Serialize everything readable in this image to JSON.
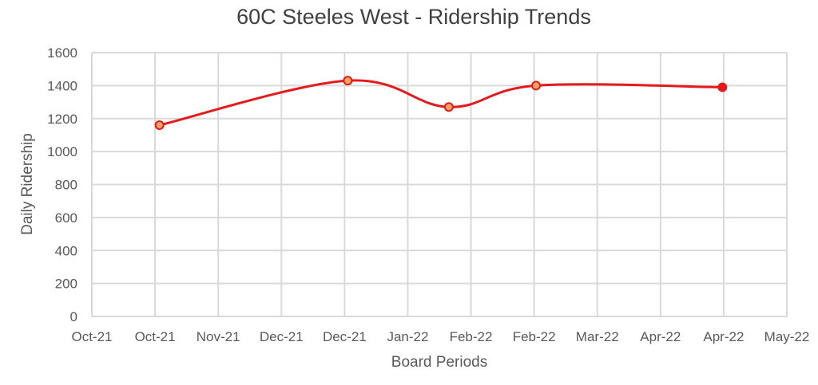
{
  "chart_data": {
    "type": "line",
    "title": "60C Steeles West - Ridership Trends",
    "xlabel": "Board Periods",
    "ylabel": "Daily Ridership",
    "x_tick_labels": [
      "Oct-21",
      "Oct-21",
      "Nov-21",
      "Dec-21",
      "Dec-21",
      "Jan-22",
      "Feb-22",
      "Feb-22",
      "Mar-22",
      "Apr-22",
      "Apr-22",
      "May-22"
    ],
    "y_ticks": [
      0,
      200,
      400,
      600,
      800,
      1000,
      1200,
      1400,
      1600
    ],
    "ylim": [
      0,
      1600
    ],
    "grid": true,
    "legend": "none",
    "series": [
      {
        "color": "#e41a1c",
        "marker_fill": "#f4a460",
        "last_marker_fill": "#e41a1c",
        "smooth": true,
        "points": [
          {
            "x": "Oct-21",
            "y": 1160
          },
          {
            "x": "Dec-21",
            "y": 1430
          },
          {
            "x": "Feb-22",
            "y": 1270
          },
          {
            "x": "Feb-22",
            "y": 1400
          },
          {
            "x": "Apr-22",
            "y": 1390
          }
        ]
      }
    ]
  }
}
